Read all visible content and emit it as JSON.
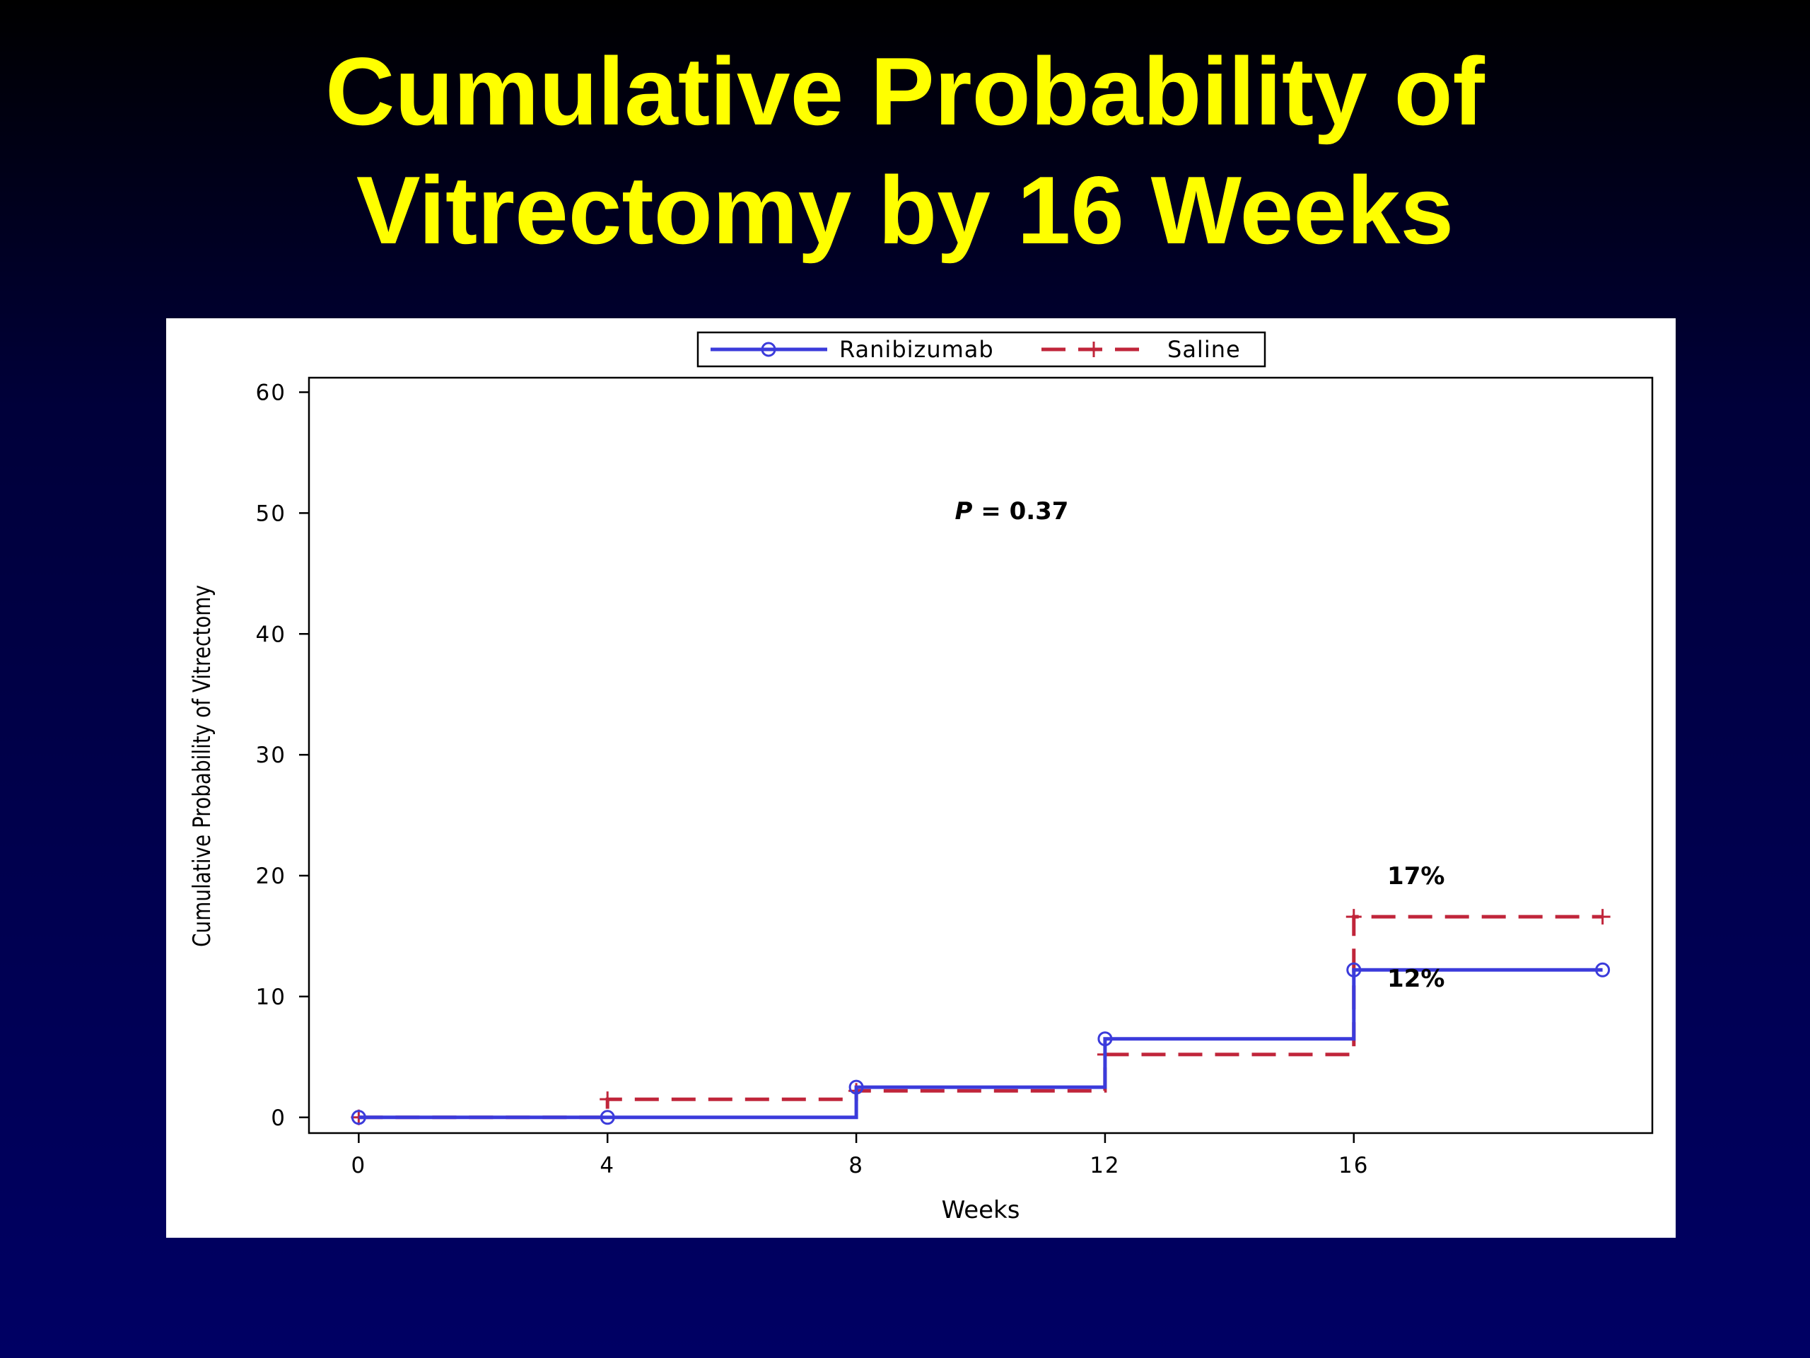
{
  "slide": {
    "title_line1": "Cumulative Probability of",
    "title_line2": "Vitrectomy by 16 Weeks"
  },
  "chart_data": {
    "type": "line",
    "step": true,
    "title": "",
    "xlabel": "Weeks",
    "ylabel": "Cumulative Probability of Vitrectomy",
    "xlim": [
      -0.8,
      20.8
    ],
    "ylim": [
      -1.3,
      61.2
    ],
    "x_ticks": [
      0,
      4,
      8,
      12,
      16
    ],
    "y_ticks": [
      0,
      10,
      20,
      30,
      40,
      50,
      60
    ],
    "grid": false,
    "legend_position": "top-center",
    "series": [
      {
        "name": "Ranibizumab",
        "color": "#3b3bdb",
        "line_style": "solid",
        "marker": "circle",
        "x": [
          0,
          4,
          8,
          12,
          16,
          20
        ],
        "y": [
          0,
          0,
          2.5,
          6.5,
          12.2,
          12.2
        ]
      },
      {
        "name": "Saline",
        "color": "#c0253a",
        "line_style": "dashed",
        "marker": "plus",
        "x": [
          0,
          4,
          8,
          12,
          16,
          20
        ],
        "y": [
          0,
          1.5,
          2.2,
          5.2,
          16.6,
          16.6
        ]
      }
    ],
    "annotations": [
      {
        "text": "P = 0.37",
        "x": 10.5,
        "y": 49.5
      },
      {
        "text": "17%",
        "x": 17.0,
        "y": 19.3
      },
      {
        "text": "12%",
        "x": 17.0,
        "y": 10.8
      }
    ]
  }
}
